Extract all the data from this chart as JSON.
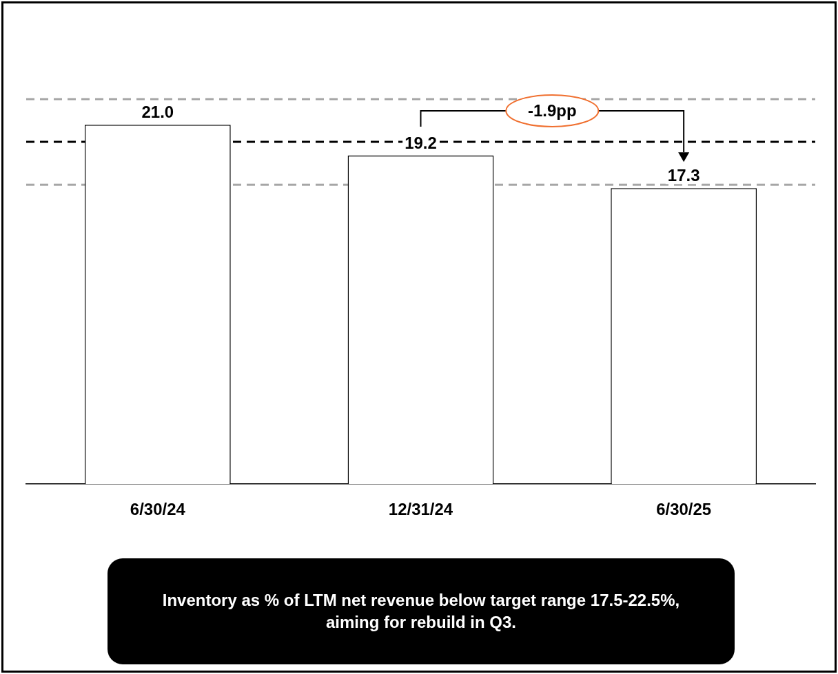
{
  "chart_data": {
    "type": "bar",
    "categories": [
      "6/30/24",
      "12/31/24",
      "6/30/25"
    ],
    "series": [
      {
        "color": "#ffffff",
        "values": [
          21.0,
          19.2,
          17.3
        ],
        "value_labels": [
          "21.0",
          "19.2",
          "17.3"
        ]
      }
    ],
    "grid": false,
    "legend": false,
    "tick_labels": "x",
    "ref_lines": [
      {
        "axis": "y",
        "value": 22.5,
        "color": "#a6a6a6",
        "line_style": "dashed"
      },
      {
        "axis": "y",
        "value": 20,
        "color": "#000000",
        "line_style": "dashed"
      },
      {
        "axis": "y",
        "value": 17.5,
        "color": "#a6a6a6",
        "line_style": "dashed"
      }
    ],
    "annotations": [
      "-1.9pp",
      "Inventory as % of LTM net revenue below target range 17.5-22.5%, aiming for rebuild in Q3."
    ]
  }
}
